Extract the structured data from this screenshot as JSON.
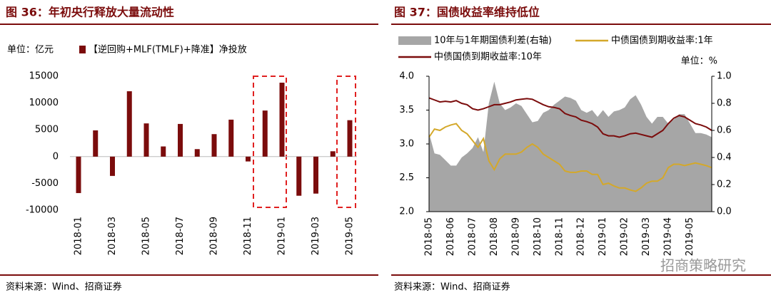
{
  "chart_data": [
    {
      "type": "bar",
      "title": "图 36：年初央行释放大量流动性",
      "unit": "单位：亿元",
      "series": [
        {
          "name": "【逆回购+MLF(TMLF)+降准】净投放",
          "color": "#7b0c0c",
          "values": [
            -6800,
            4900,
            -3600,
            12200,
            6200,
            1900,
            6100,
            1400,
            4200,
            6900,
            -900,
            8600,
            13800,
            -7300,
            -6900,
            1000,
            6800
          ]
        }
      ],
      "categories": [
        "2018-01",
        null,
        "2018-03",
        null,
        "2018-05",
        null,
        "2018-07",
        null,
        "2018-09",
        null,
        "2018-11",
        null,
        "2019-01",
        null,
        "2019-03",
        null,
        "2019-05"
      ],
      "ylim": [
        -10000,
        15000
      ],
      "yticks": [
        -10000,
        -5000,
        0,
        5000,
        10000,
        15000
      ],
      "source": "资料来源：Wind、招商证券"
    },
    {
      "type": "line",
      "title": "图 37：国债收益率维持低位",
      "unit": "单位：%",
      "categories": [
        "2018-05",
        null,
        null,
        null,
        "2018-06",
        null,
        null,
        null,
        "2018-07",
        null,
        null,
        null,
        "2018-08",
        null,
        null,
        null,
        "2018-09",
        null,
        null,
        null,
        "2018-10",
        null,
        null,
        null,
        "2018-11",
        null,
        null,
        null,
        "2018-12",
        null,
        null,
        null,
        "2019-01",
        null,
        null,
        null,
        "2019-02",
        null,
        null,
        null,
        "2019-03",
        null,
        null,
        null,
        "2019-04",
        null,
        null,
        null,
        "2019-05",
        null,
        null,
        null,
        null
      ],
      "series": [
        {
          "name": "10年与1年期国债利差(右轴)",
          "color": "#a6a6a6",
          "axis": "y2",
          "kind": "area",
          "values": [
            0.58,
            0.43,
            0.42,
            0.38,
            0.34,
            0.34,
            0.4,
            0.43,
            0.47,
            0.55,
            0.44,
            0.8,
            0.96,
            0.8,
            0.75,
            0.77,
            0.8,
            0.78,
            0.72,
            0.66,
            0.67,
            0.73,
            0.75,
            0.79,
            0.82,
            0.85,
            0.84,
            0.82,
            0.75,
            0.73,
            0.75,
            0.7,
            0.75,
            0.7,
            0.74,
            0.75,
            0.77,
            0.83,
            0.86,
            0.79,
            0.7,
            0.65,
            0.7,
            0.7,
            0.65,
            0.68,
            0.72,
            0.72,
            0.65,
            0.58,
            0.58,
            0.57,
            0.55
          ]
        },
        {
          "name": "中债国债到期收益率:1年",
          "color": "#d4a82a",
          "values": [
            3.1,
            3.22,
            3.2,
            3.25,
            3.28,
            3.3,
            3.2,
            3.15,
            3.05,
            2.95,
            3.08,
            2.75,
            2.62,
            2.78,
            2.85,
            2.85,
            2.85,
            2.88,
            2.95,
            3.0,
            2.95,
            2.85,
            2.8,
            2.75,
            2.7,
            2.6,
            2.58,
            2.58,
            2.6,
            2.6,
            2.55,
            2.55,
            2.4,
            2.42,
            2.38,
            2.35,
            2.35,
            2.32,
            2.3,
            2.35,
            2.42,
            2.45,
            2.45,
            2.5,
            2.65,
            2.7,
            2.7,
            2.68,
            2.7,
            2.72,
            2.7,
            2.68,
            2.65
          ]
        },
        {
          "name": "中债国债到期收益率:10年",
          "color": "#7b0c0c",
          "values": [
            3.68,
            3.65,
            3.62,
            3.63,
            3.62,
            3.64,
            3.6,
            3.58,
            3.52,
            3.5,
            3.52,
            3.55,
            3.58,
            3.58,
            3.6,
            3.62,
            3.65,
            3.66,
            3.67,
            3.66,
            3.62,
            3.58,
            3.55,
            3.54,
            3.52,
            3.45,
            3.42,
            3.4,
            3.35,
            3.33,
            3.3,
            3.25,
            3.15,
            3.12,
            3.12,
            3.1,
            3.12,
            3.15,
            3.16,
            3.14,
            3.12,
            3.1,
            3.15,
            3.2,
            3.3,
            3.38,
            3.42,
            3.4,
            3.35,
            3.3,
            3.28,
            3.25,
            3.2
          ]
        }
      ],
      "ylim": [
        2.0,
        4.0
      ],
      "yticks": [
        {
          "value": 2,
          "label": "2.0"
        },
        2.5,
        {
          "value": 3,
          "label": "3.0"
        },
        3.5,
        {
          "value": 4,
          "label": "4.0"
        }
      ],
      "y2lim": [
        0,
        1
      ],
      "y2ticks": [
        {
          "value": 0,
          "label": "0.0"
        },
        0.2,
        0.4,
        0.6,
        0.8,
        {
          "value": 1,
          "label": "1.0"
        }
      ],
      "source": "资料来源：Wind、招商证券",
      "watermark": "招商策略研究"
    }
  ]
}
